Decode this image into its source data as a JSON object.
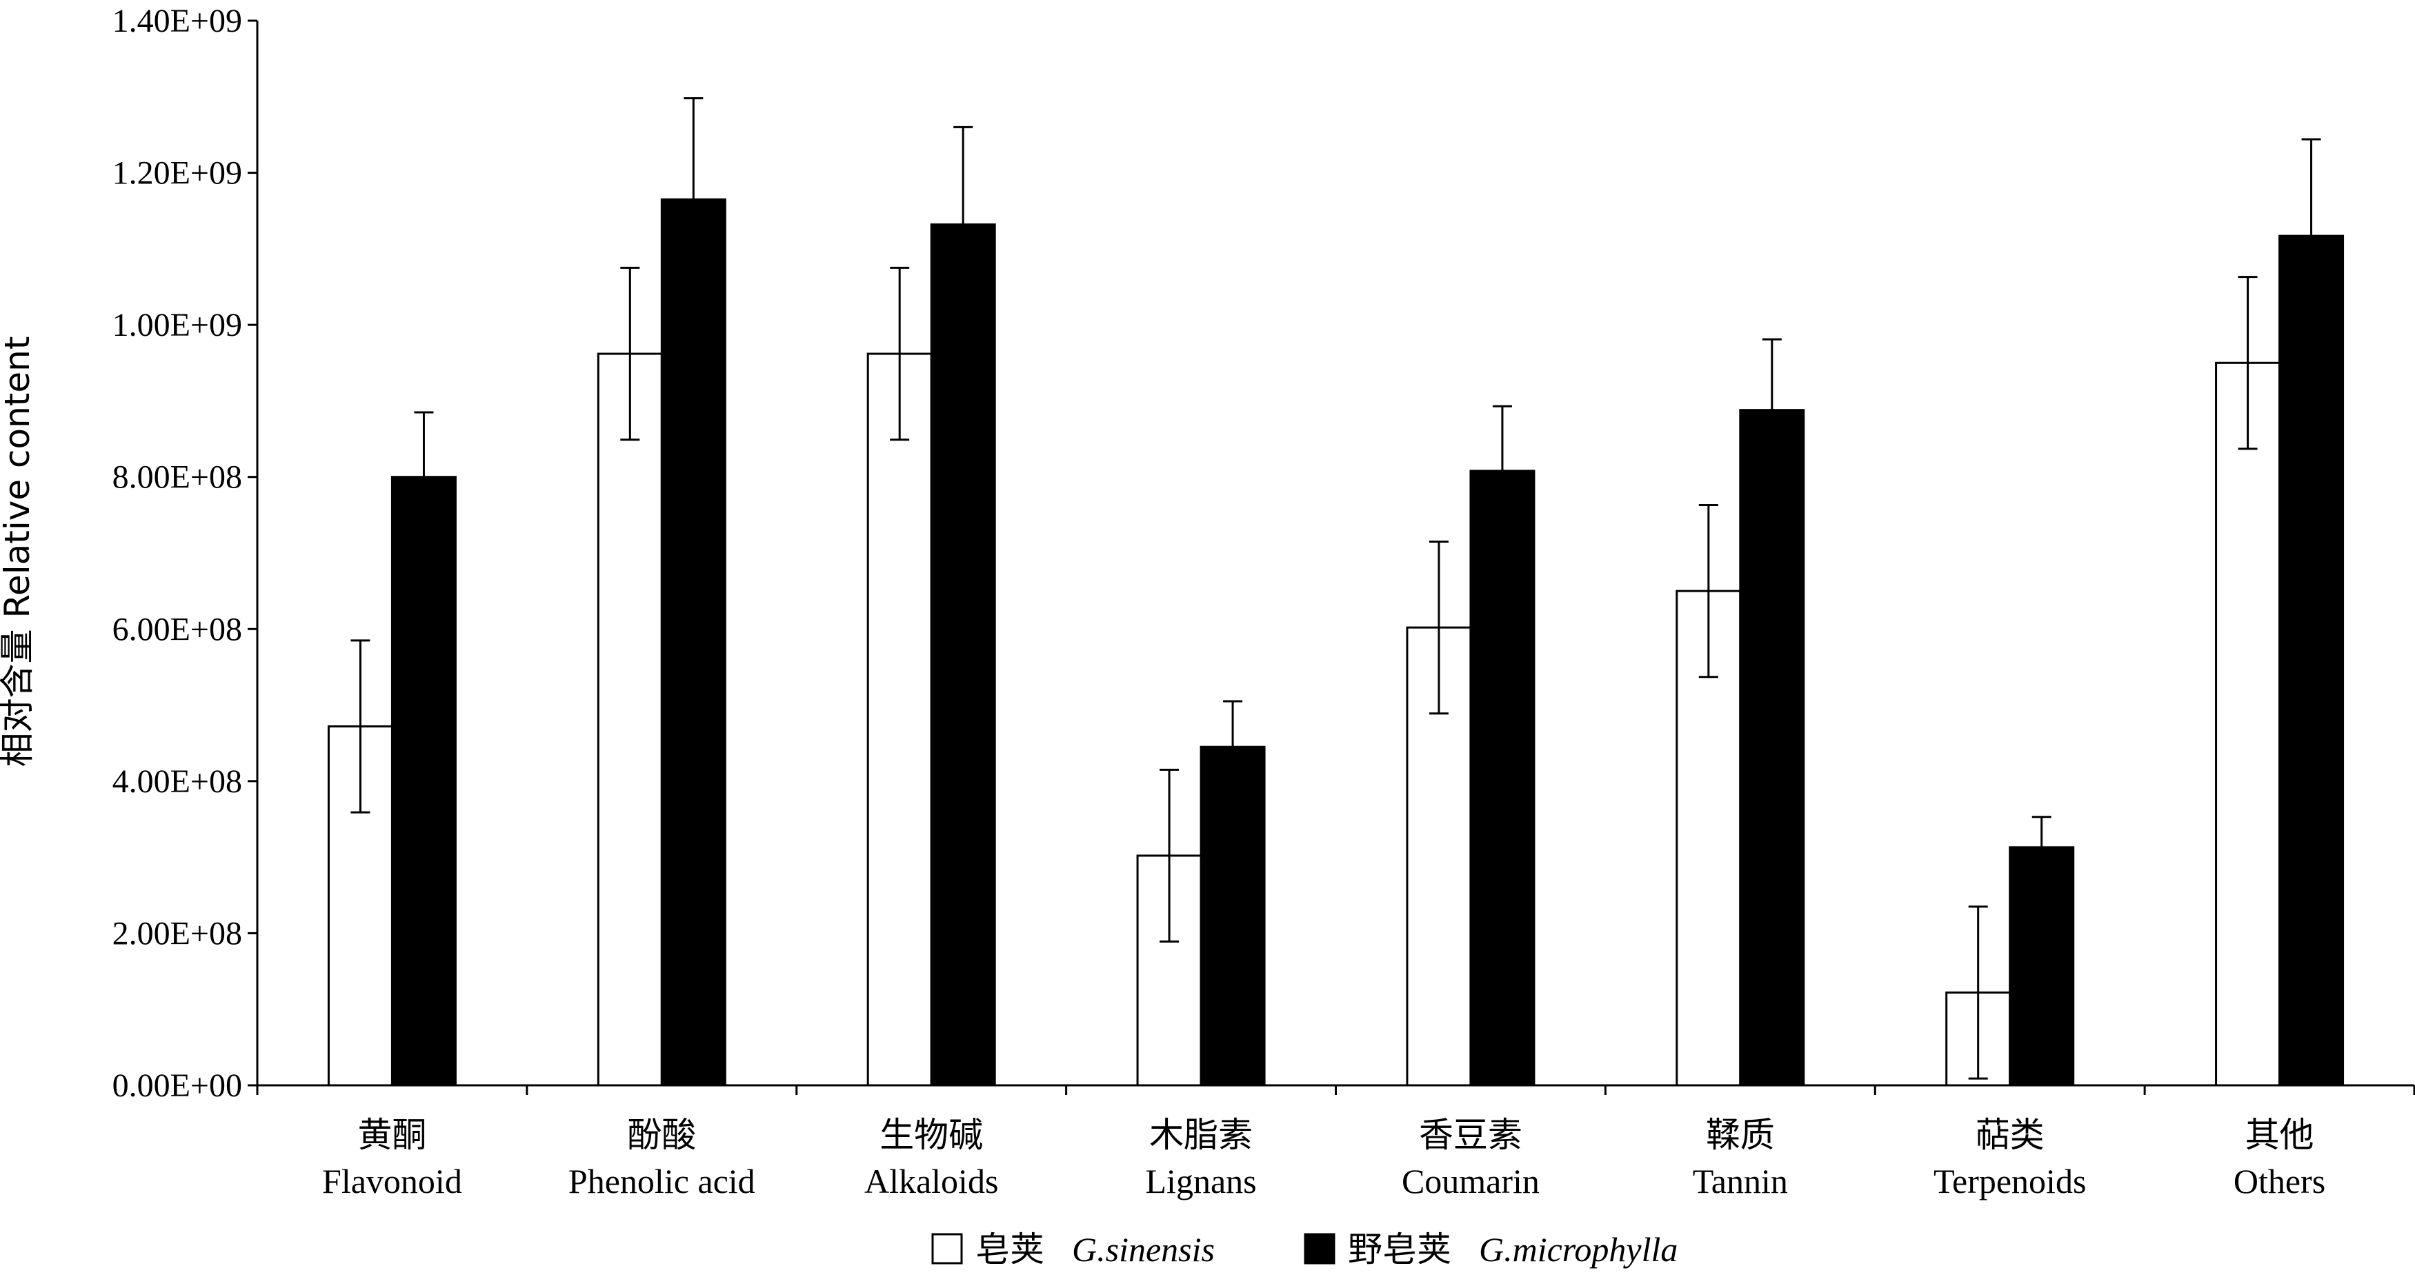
{
  "chart_data": {
    "type": "bar",
    "ylabel": "相对含量 Relative content",
    "ylim": [
      0,
      1400000000
    ],
    "y_ticks": [
      0,
      200000000,
      400000000,
      600000000,
      800000000,
      1000000000,
      1200000000,
      1400000000
    ],
    "y_tick_labels": [
      "0.00E+00",
      "2.00E+08",
      "4.00E+08",
      "6.00E+08",
      "8.00E+08",
      "1.00E+09",
      "1.20E+09",
      "1.40E+09"
    ],
    "categories": [
      {
        "cn": "黄酮",
        "en": "Flavonoid"
      },
      {
        "cn": "酚酸",
        "en": "Phenolic acid"
      },
      {
        "cn": "生物碱",
        "en": "Alkaloids"
      },
      {
        "cn": "木脂素",
        "en": "Lignans"
      },
      {
        "cn": "香豆素",
        "en": "Coumarin"
      },
      {
        "cn": "鞣质",
        "en": "Tannin"
      },
      {
        "cn": "萜类",
        "en": "Terpenoids"
      },
      {
        "cn": "其他",
        "en": "Others"
      }
    ],
    "series": [
      {
        "name_cn": "皂荚",
        "name_latin": "G.sinensis",
        "color": "#ffffff",
        "values": [
          472000000,
          962000000,
          962000000,
          302000000,
          602000000,
          650000000,
          122000000,
          950000000
        ],
        "errors": [
          113000000,
          113000000,
          113000000,
          113000000,
          113000000,
          113000000,
          113000000,
          113000000
        ]
      },
      {
        "name_cn": "野皂荚",
        "name_latin": "G.microphylla",
        "color": "#000000",
        "values": [
          800000000,
          1165000000,
          1132000000,
          445000000,
          808000000,
          888000000,
          313000000,
          1117000000
        ],
        "errors": [
          85000000,
          133000000,
          128000000,
          60000000,
          85000000,
          93000000,
          40000000,
          127000000
        ]
      }
    ],
    "legend_position": "bottom-center",
    "grid": false
  }
}
